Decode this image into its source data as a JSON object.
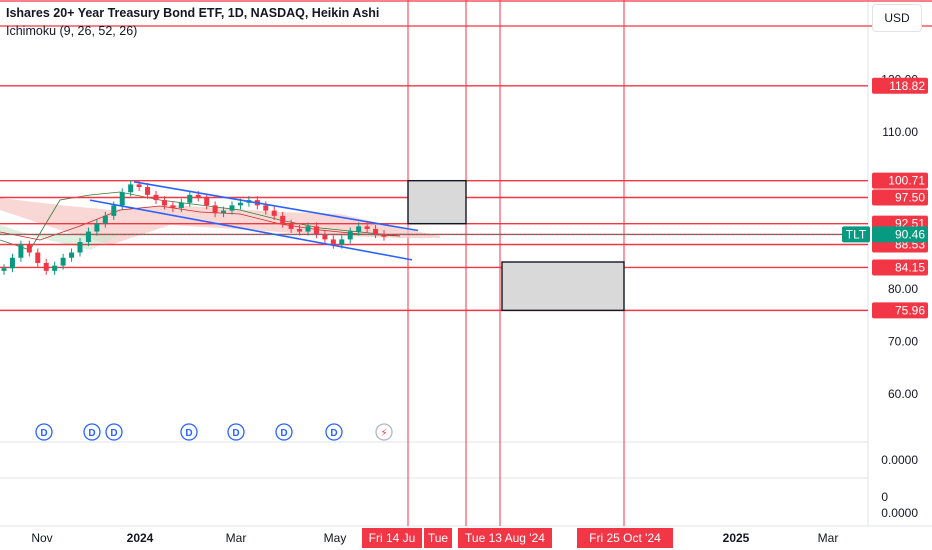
{
  "header": {
    "title": "Ishares 20+ Year Treasury Bond ETF, 1D, NASDAQ, Heikin Ashi",
    "indicator": "Ichimoku (9, 26, 52, 26)"
  },
  "toolbar": {
    "currency": "USD"
  },
  "colors": {
    "red_line": "#f23645",
    "trend_blue": "#2962ff",
    "bull_candle": "#089981",
    "bear_candle": "#f23645",
    "cloud_red": "#f7c9c7",
    "cloud_green": "#c8e6c9",
    "box_fill": "#d9d9d9",
    "price_tag": "#089981"
  },
  "chart_data": {
    "type": "candlestick",
    "title": "Ishares 20+ Year Treasury Bond ETF, 1D, NASDAQ, Heikin Ashi",
    "ticker": "TLT",
    "last_price": 90.46,
    "price_axis_ticks": [
      "120.00",
      "110.00",
      "80.00",
      "70.00",
      "60.00"
    ],
    "indicator_axis_ticks": [
      "0.0000",
      "0",
      "0.0000"
    ],
    "time_axis_ticks": [
      "Nov",
      "2024",
      "Mar",
      "May",
      "2025",
      "Mar"
    ],
    "time_axis_tags": [
      "Fri 14 Ju",
      "Tue",
      "Tue 13 Aug '24",
      "Fri 25 Oct '24"
    ],
    "horizontal_levels": [
      118.82,
      100.71,
      97.5,
      92.51,
      90.45,
      88.53,
      84.15,
      75.96
    ],
    "level_labels": [
      "118.82",
      "100.71",
      "97.50",
      "92.51",
      "90.45",
      "88.53",
      "84.15",
      "75.96"
    ],
    "price_tag_label": "TLT",
    "price_tag_value": "90.46",
    "dividend_markers": [
      "D",
      "D",
      "D",
      "D",
      "D",
      "D",
      "D"
    ],
    "earnings_marker": "⚡",
    "price_series": [
      84,
      86,
      88.5,
      87,
      85,
      83.5,
      84.5,
      86,
      87,
      89,
      91,
      92.5,
      94,
      96,
      98.5,
      100,
      99.5,
      98,
      97,
      96,
      95.5,
      96.5,
      98,
      97.5,
      96,
      94.5,
      95,
      96,
      96.5,
      97,
      96,
      95,
      94,
      92.5,
      91.5,
      91,
      92,
      90.5,
      89.5,
      88.5,
      89.5,
      91,
      92,
      91.5,
      90.5,
      90
    ],
    "trend_channel": {
      "upper": [
        [
          100.5,
          91.2
        ]
      ],
      "lower": [
        [
          96.5,
          87.2
        ]
      ]
    },
    "projection_boxes": [
      {
        "top": 100.71,
        "bottom": 92.51
      },
      {
        "top": 89.2,
        "bottom": 75.96
      }
    ]
  }
}
